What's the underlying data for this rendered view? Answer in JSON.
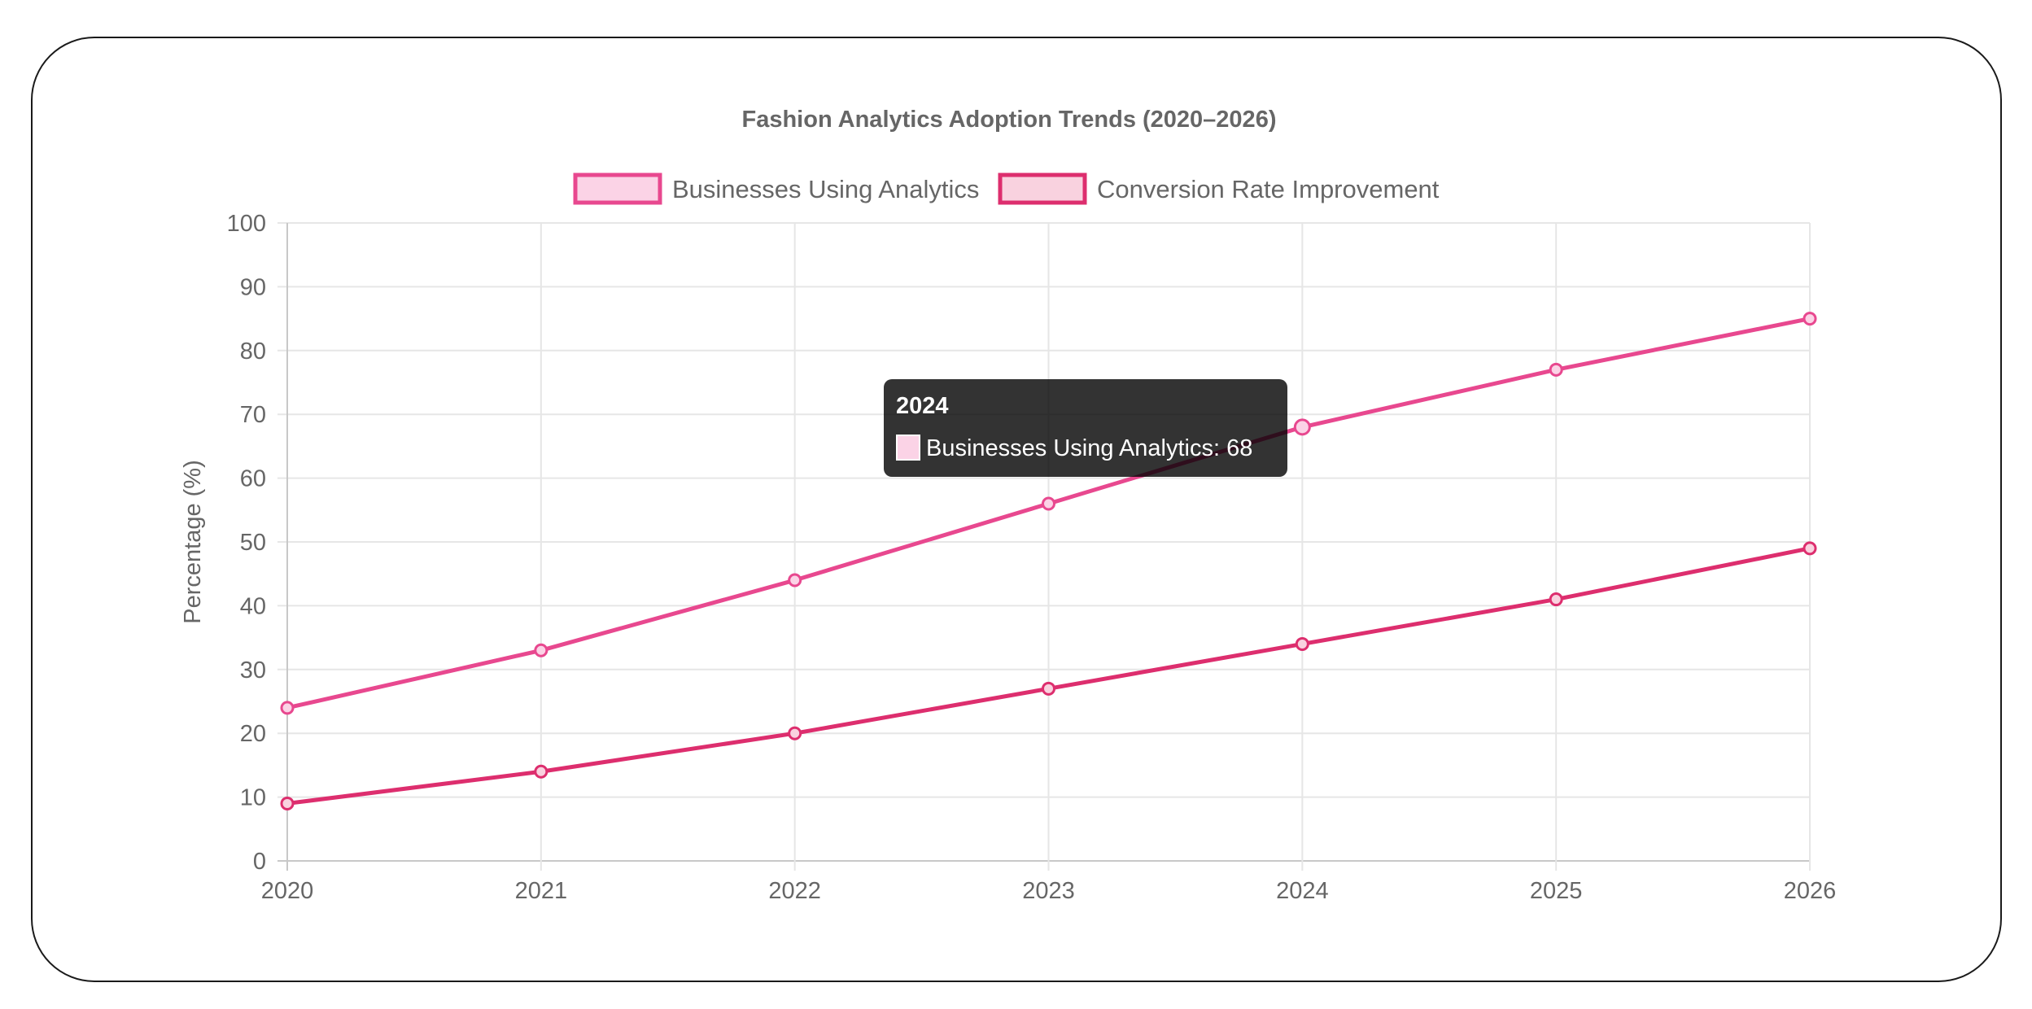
{
  "chart_data": {
    "type": "line",
    "title": "Fashion Analytics Adoption Trends (2020–2026)",
    "xlabel": "",
    "ylabel": "Percentage (%)",
    "categories": [
      "2020",
      "2021",
      "2022",
      "2023",
      "2024",
      "2025",
      "2026"
    ],
    "ylim": [
      0,
      100
    ],
    "yticks": [
      "0",
      "10",
      "20",
      "30",
      "40",
      "50",
      "60",
      "70",
      "80",
      "90",
      "100"
    ],
    "grid": true,
    "legend_position": "top",
    "series": [
      {
        "name": "Businesses Using Analytics",
        "values": [
          24,
          33,
          44,
          56,
          68,
          77,
          85
        ],
        "color": "#e8488f",
        "fill": "#fbd3e6"
      },
      {
        "name": "Conversion Rate Improvement",
        "values": [
          9,
          14,
          20,
          27,
          34,
          41,
          49
        ],
        "color": "#dd2e6e",
        "fill": "#f9d2df"
      }
    ],
    "tooltip": {
      "title": "2024",
      "label": "Businesses Using Analytics: 68",
      "series_index": 0,
      "category_index": 4
    }
  }
}
